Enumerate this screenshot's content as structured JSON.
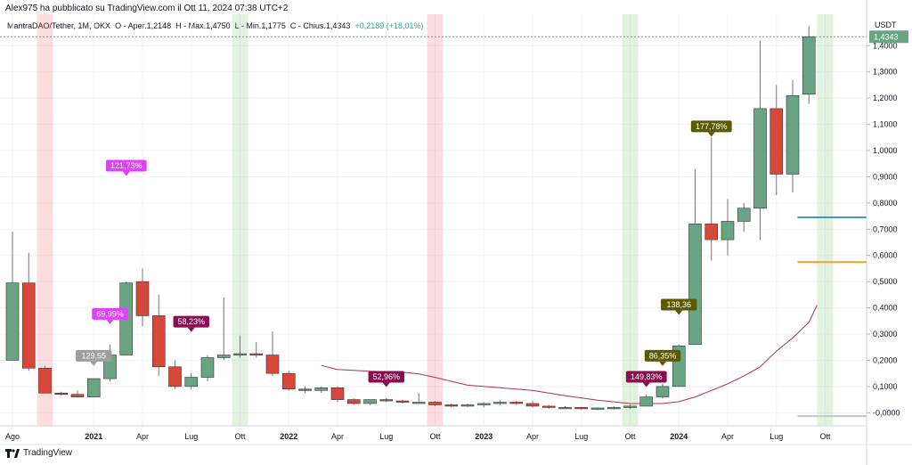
{
  "header": {
    "published_by": "Alex975 ha pubblicato su TradingView.com il Ott 11, 2024 07:38 UTC+2"
  },
  "legend": {
    "symbol": "MantraDAO/Tether, 1M, OKX",
    "open": "O - Aper.1,2148",
    "high": "H - Max.1,4750",
    "low": "L - Min.1,1775",
    "close": "C - Chius.1,4343",
    "change": "+0,2189 (+18,01%)"
  },
  "price_axis": {
    "unit": "USDT",
    "last_price": "1,4343",
    "ticks": [
      {
        "label": "1,4000",
        "v": 1.4
      },
      {
        "label": "1,3000",
        "v": 1.3
      },
      {
        "label": "1,2000",
        "v": 1.2
      },
      {
        "label": "1,1000",
        "v": 1.1
      },
      {
        "label": "1,0000",
        "v": 1.0
      },
      {
        "label": "0,9000",
        "v": 0.9
      },
      {
        "label": "0,8000",
        "v": 0.8
      },
      {
        "label": "0,7000",
        "v": 0.7
      },
      {
        "label": "0,6000",
        "v": 0.6
      },
      {
        "label": "0,5000",
        "v": 0.5
      },
      {
        "label": "0,4000",
        "v": 0.4
      },
      {
        "label": "0,3000",
        "v": 0.3
      },
      {
        "label": "0,2000",
        "v": 0.2
      },
      {
        "label": "0,1000",
        "v": 0.1
      },
      {
        "label": "-0,0000",
        "v": 0.0
      }
    ]
  },
  "time_axis": {
    "labels": [
      {
        "label": "Ago",
        "i": 0,
        "bold": false
      },
      {
        "label": "2021",
        "i": 5,
        "bold": true
      },
      {
        "label": "Apr",
        "i": 8,
        "bold": false
      },
      {
        "label": "Lug",
        "i": 11,
        "bold": false
      },
      {
        "label": "Ott",
        "i": 14,
        "bold": false
      },
      {
        "label": "2022",
        "i": 17,
        "bold": true
      },
      {
        "label": "Apr",
        "i": 20,
        "bold": false
      },
      {
        "label": "Lug",
        "i": 23,
        "bold": false
      },
      {
        "label": "Ott",
        "i": 26,
        "bold": false
      },
      {
        "label": "2023",
        "i": 29,
        "bold": true
      },
      {
        "label": "Apr",
        "i": 32,
        "bold": false
      },
      {
        "label": "Lug",
        "i": 35,
        "bold": false
      },
      {
        "label": "Ott",
        "i": 38,
        "bold": false
      },
      {
        "label": "2024",
        "i": 41,
        "bold": true
      },
      {
        "label": "Apr",
        "i": 44,
        "bold": false
      },
      {
        "label": "Lug",
        "i": 47,
        "bold": false
      },
      {
        "label": "Ott",
        "i": 50,
        "bold": false
      }
    ]
  },
  "chart_data": {
    "type": "candlestick",
    "y_scale": "linear",
    "ylim": [
      -0.05,
      1.52
    ],
    "grid": true,
    "colors": {
      "up": "#6aa583",
      "down": "#d6493a",
      "ma": "#b2304a",
      "blue_level": "#4a90d9",
      "orange_level": "#f5a623"
    },
    "candles": [
      {
        "o": 0.2,
        "h": 0.69,
        "l": 0.2,
        "c": 0.495
      },
      {
        "o": 0.495,
        "h": 0.61,
        "l": 0.16,
        "c": 0.17
      },
      {
        "o": 0.17,
        "h": 0.18,
        "l": 0.08,
        "c": 0.075
      },
      {
        "o": 0.075,
        "h": 0.08,
        "l": 0.065,
        "c": 0.07
      },
      {
        "o": 0.07,
        "h": 0.085,
        "l": 0.06,
        "c": 0.06
      },
      {
        "o": 0.06,
        "h": 0.13,
        "l": 0.06,
        "c": 0.13
      },
      {
        "o": 0.13,
        "h": 0.26,
        "l": 0.12,
        "c": 0.22
      },
      {
        "o": 0.22,
        "h": 0.5,
        "l": 0.22,
        "c": 0.495
      },
      {
        "o": 0.5,
        "h": 0.55,
        "l": 0.33,
        "c": 0.37
      },
      {
        "o": 0.37,
        "h": 0.45,
        "l": 0.14,
        "c": 0.175
      },
      {
        "o": 0.175,
        "h": 0.2,
        "l": 0.09,
        "c": 0.1
      },
      {
        "o": 0.1,
        "h": 0.15,
        "l": 0.09,
        "c": 0.135
      },
      {
        "o": 0.135,
        "h": 0.22,
        "l": 0.12,
        "c": 0.21
      },
      {
        "o": 0.21,
        "h": 0.44,
        "l": 0.2,
        "c": 0.22
      },
      {
        "o": 0.22,
        "h": 0.295,
        "l": 0.21,
        "c": 0.225
      },
      {
        "o": 0.225,
        "h": 0.27,
        "l": 0.21,
        "c": 0.22
      },
      {
        "o": 0.22,
        "h": 0.31,
        "l": 0.14,
        "c": 0.15
      },
      {
        "o": 0.15,
        "h": 0.16,
        "l": 0.085,
        "c": 0.09
      },
      {
        "o": 0.09,
        "h": 0.1,
        "l": 0.075,
        "c": 0.085
      },
      {
        "o": 0.085,
        "h": 0.1,
        "l": 0.075,
        "c": 0.095
      },
      {
        "o": 0.095,
        "h": 0.1,
        "l": 0.04,
        "c": 0.05
      },
      {
        "o": 0.05,
        "h": 0.055,
        "l": 0.03,
        "c": 0.035
      },
      {
        "o": 0.035,
        "h": 0.05,
        "l": 0.03,
        "c": 0.05
      },
      {
        "o": 0.05,
        "h": 0.055,
        "l": 0.04,
        "c": 0.045
      },
      {
        "o": 0.045,
        "h": 0.05,
        "l": 0.035,
        "c": 0.04
      },
      {
        "o": 0.04,
        "h": 0.075,
        "l": 0.035,
        "c": 0.04
      },
      {
        "o": 0.04,
        "h": 0.045,
        "l": 0.025,
        "c": 0.03
      },
      {
        "o": 0.03,
        "h": 0.035,
        "l": 0.02,
        "c": 0.025
      },
      {
        "o": 0.025,
        "h": 0.035,
        "l": 0.02,
        "c": 0.03
      },
      {
        "o": 0.03,
        "h": 0.04,
        "l": 0.02,
        "c": 0.035
      },
      {
        "o": 0.035,
        "h": 0.045,
        "l": 0.03,
        "c": 0.04
      },
      {
        "o": 0.04,
        "h": 0.045,
        "l": 0.03,
        "c": 0.035
      },
      {
        "o": 0.035,
        "h": 0.045,
        "l": 0.02,
        "c": 0.025
      },
      {
        "o": 0.025,
        "h": 0.03,
        "l": 0.015,
        "c": 0.02
      },
      {
        "o": 0.02,
        "h": 0.025,
        "l": 0.015,
        "c": 0.02
      },
      {
        "o": 0.02,
        "h": 0.022,
        "l": 0.012,
        "c": 0.015
      },
      {
        "o": 0.015,
        "h": 0.02,
        "l": 0.01,
        "c": 0.018
      },
      {
        "o": 0.018,
        "h": 0.025,
        "l": 0.012,
        "c": 0.02
      },
      {
        "o": 0.02,
        "h": 0.03,
        "l": 0.015,
        "c": 0.025
      },
      {
        "o": 0.025,
        "h": 0.07,
        "l": 0.025,
        "c": 0.06
      },
      {
        "o": 0.06,
        "h": 0.11,
        "l": 0.055,
        "c": 0.1
      },
      {
        "o": 0.1,
        "h": 0.26,
        "l": 0.1,
        "c": 0.255
      },
      {
        "o": 0.26,
        "h": 0.93,
        "l": 0.26,
        "c": 0.72
      },
      {
        "o": 0.72,
        "h": 1.05,
        "l": 0.58,
        "c": 0.66
      },
      {
        "o": 0.66,
        "h": 0.815,
        "l": 0.6,
        "c": 0.73
      },
      {
        "o": 0.73,
        "h": 0.8,
        "l": 0.69,
        "c": 0.78
      },
      {
        "o": 0.78,
        "h": 1.42,
        "l": 0.66,
        "c": 1.16
      },
      {
        "o": 1.16,
        "h": 1.25,
        "l": 0.83,
        "c": 0.91
      },
      {
        "o": 0.91,
        "h": 1.27,
        "l": 0.84,
        "c": 1.21
      },
      {
        "o": 1.2148,
        "h": 1.475,
        "l": 1.1775,
        "c": 1.4343
      }
    ],
    "moving_average": [
      {
        "i": 19,
        "v": 0.18
      },
      {
        "i": 20,
        "v": 0.165
      },
      {
        "i": 22,
        "v": 0.158
      },
      {
        "i": 24,
        "v": 0.155
      },
      {
        "i": 25,
        "v": 0.148
      },
      {
        "i": 26,
        "v": 0.135
      },
      {
        "i": 28,
        "v": 0.105
      },
      {
        "i": 30,
        "v": 0.095
      },
      {
        "i": 32,
        "v": 0.085
      },
      {
        "i": 34,
        "v": 0.065
      },
      {
        "i": 36,
        "v": 0.048
      },
      {
        "i": 38,
        "v": 0.035
      },
      {
        "i": 40,
        "v": 0.035
      },
      {
        "i": 41,
        "v": 0.042
      },
      {
        "i": 42,
        "v": 0.06
      },
      {
        "i": 43,
        "v": 0.085
      },
      {
        "i": 44,
        "v": 0.11
      },
      {
        "i": 45,
        "v": 0.14
      },
      {
        "i": 46,
        "v": 0.175
      },
      {
        "i": 47,
        "v": 0.235
      },
      {
        "i": 48,
        "v": 0.285
      },
      {
        "i": 49,
        "v": 0.345
      },
      {
        "i": 49.5,
        "v": 0.41
      }
    ],
    "horizontal_levels": [
      {
        "v": 0.745,
        "color": "#4a90d9",
        "from_i": 48.3
      },
      {
        "v": 0.575,
        "color": "#f5a623",
        "from_i": 48.3
      },
      {
        "v": -0.013,
        "color": "#c8c8c8",
        "from_i": 48.3
      }
    ],
    "highlight_bands": [
      {
        "i": 2,
        "color": "red"
      },
      {
        "i": 14,
        "color": "green"
      },
      {
        "i": 26,
        "color": "red"
      },
      {
        "i": 38,
        "color": "green"
      },
      {
        "i": 50,
        "color": "green"
      }
    ],
    "annotations": [
      {
        "i": 7,
        "y": 0.92,
        "text": "121,73%",
        "color": "#e040fb"
      },
      {
        "i": 6,
        "y": 0.355,
        "text": "69,99%",
        "color": "#e040fb"
      },
      {
        "i": 5,
        "y": 0.195,
        "text": "129,55",
        "color": "#9e9e9e"
      },
      {
        "i": 11,
        "y": 0.325,
        "text": "58,23%",
        "color": "#880e4f"
      },
      {
        "i": 23,
        "y": 0.115,
        "text": "52,96%",
        "color": "#880e4f"
      },
      {
        "i": 39,
        "y": 0.115,
        "text": "149,83%",
        "color": "#880e4f"
      },
      {
        "i": 41,
        "y": 0.39,
        "text": "138,36",
        "color": "#5c5a00"
      },
      {
        "i": 40,
        "y": 0.195,
        "text": "86,35%",
        "color": "#5c5a00"
      },
      {
        "i": 43,
        "y": 1.07,
        "text": "177,78%",
        "color": "#5c5a00"
      }
    ]
  },
  "footer": {
    "brand": "TradingView"
  }
}
